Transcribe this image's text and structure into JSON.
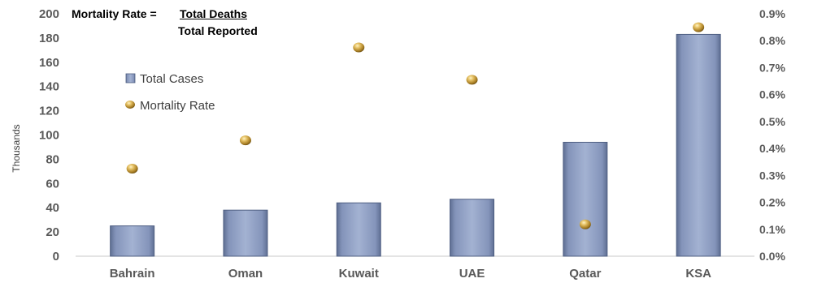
{
  "formula": {
    "label": "Mortality Rate =",
    "numerator": "Total Deaths",
    "denominator": "Total Reported"
  },
  "chart_data": {
    "type": "bar",
    "categories": [
      "Bahrain",
      "Oman",
      "Kuwait",
      "UAE",
      "Qatar",
      "KSA"
    ],
    "series": [
      {
        "name": "Total Cases",
        "type": "bar",
        "axis": "left",
        "values": [
          25,
          38,
          44,
          47,
          94,
          183
        ],
        "color": "#8fa0c3"
      },
      {
        "name": "Mortality Rate",
        "type": "scatter",
        "axis": "right",
        "values": [
          0.325,
          0.43,
          0.775,
          0.655,
          0.118,
          0.85
        ],
        "color": "#c9a14a"
      }
    ],
    "ylabel": "Thousands",
    "ylim": [
      0,
      200
    ],
    "yticks": [
      "0",
      "20",
      "40",
      "60",
      "80",
      "100",
      "120",
      "140",
      "160",
      "180",
      "200"
    ],
    "y2lim": [
      0,
      0.9
    ],
    "y2ticks": [
      "0.0%",
      "0.1%",
      "0.2%",
      "0.3%",
      "0.4%",
      "0.5%",
      "0.6%",
      "0.7%",
      "0.8%",
      "0.9%"
    ],
    "grid": false,
    "legend": "upper-left"
  }
}
